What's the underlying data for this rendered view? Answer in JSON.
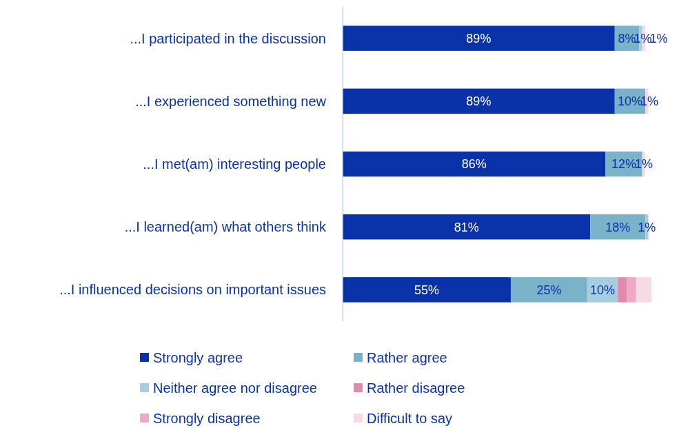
{
  "chart_data": {
    "type": "bar",
    "orientation": "horizontal",
    "stacked": true,
    "legend": "bottom",
    "categories": [
      "...I participated in the discussion",
      "...I experienced something new",
      "...I met(am) interesting people",
      "...I learned(am) what others think",
      "...I influenced decisions on important issues"
    ],
    "series": [
      {
        "name": "Strongly agree",
        "color": "#0a32a8",
        "values": [
          89,
          89,
          86,
          81,
          55
        ],
        "value_labels": [
          "89%",
          "89%",
          "86%",
          "81%",
          "55%"
        ]
      },
      {
        "name": "Rather agree",
        "color": "#7ab3c9",
        "values": [
          8,
          10,
          12,
          18,
          25
        ],
        "value_labels": [
          "8%",
          "10%",
          "12%",
          "18%",
          "25%"
        ]
      },
      {
        "name": "Neither agree nor disagree",
        "color": "#a6cde0",
        "values": [
          1,
          null,
          null,
          1,
          10
        ],
        "value_labels": [
          "1%",
          null,
          null,
          "1%",
          "10%"
        ]
      },
      {
        "name": "Rather disagree",
        "color": "#e08aad",
        "values": [
          null,
          null,
          null,
          null,
          3
        ],
        "value_labels": [
          null,
          null,
          null,
          null,
          null
        ]
      },
      {
        "name": "Strongly disagree",
        "color": "#ebaac5",
        "values": [
          null,
          null,
          null,
          null,
          3
        ],
        "value_labels": [
          null,
          null,
          null,
          null,
          null
        ]
      },
      {
        "name": "Difficult to say",
        "color": "#f6dbe5",
        "values": [
          1,
          1,
          1,
          null,
          5
        ],
        "value_labels": [
          "1%",
          "1%",
          "1%",
          null,
          null
        ]
      }
    ]
  }
}
